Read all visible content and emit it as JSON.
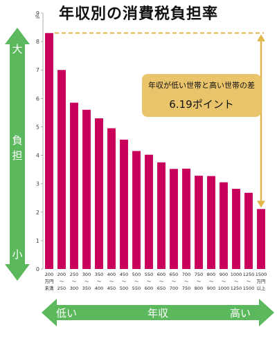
{
  "chart_data": {
    "type": "bar",
    "title": "年収別の消費税負担率",
    "y_unit": "%",
    "ylim": [
      0,
      9
    ],
    "yticks": [
      "0",
      "1",
      "2",
      "3",
      "4",
      "5",
      "6",
      "7",
      "8",
      "9"
    ],
    "categories": [
      [
        "200",
        "万円",
        "未満"
      ],
      [
        "200",
        "〜",
        "250"
      ],
      [
        "250",
        "〜",
        "300"
      ],
      [
        "300",
        "〜",
        "350"
      ],
      [
        "350",
        "〜",
        "400"
      ],
      [
        "400",
        "〜",
        "450"
      ],
      [
        "450",
        "〜",
        "500"
      ],
      [
        "500",
        "〜",
        "550"
      ],
      [
        "550",
        "〜",
        "600"
      ],
      [
        "600",
        "〜",
        "650"
      ],
      [
        "650",
        "〜",
        "700"
      ],
      [
        "700",
        "〜",
        "750"
      ],
      [
        "750",
        "〜",
        "800"
      ],
      [
        "800",
        "〜",
        "900"
      ],
      [
        "900",
        "〜",
        "1000"
      ],
      [
        "1000",
        "〜",
        "1250"
      ],
      [
        "1250",
        "〜",
        "1500"
      ],
      [
        "1500",
        "万円",
        "以上"
      ]
    ],
    "values": [
      8.3,
      7.0,
      5.85,
      5.6,
      5.3,
      4.95,
      4.55,
      4.15,
      4.02,
      3.75,
      3.52,
      3.53,
      3.28,
      3.27,
      3.05,
      2.82,
      2.68,
      2.11
    ],
    "bar_color": "#c8005a",
    "annotation": {
      "text_line1": "年収が低い世帯と高い世帯の差",
      "text_line2": "6.19ポイント",
      "box_color": "#e9c46a",
      "line_color": "#e0b54a"
    },
    "left_arrow": {
      "top_label": "大",
      "middle_label": "負担",
      "bottom_label": "小",
      "color": "#5cb85c"
    },
    "bottom_arrow": {
      "left_label": "低い",
      "middle_label": "年収",
      "right_label": "高い",
      "color": "#5cb85c"
    }
  }
}
